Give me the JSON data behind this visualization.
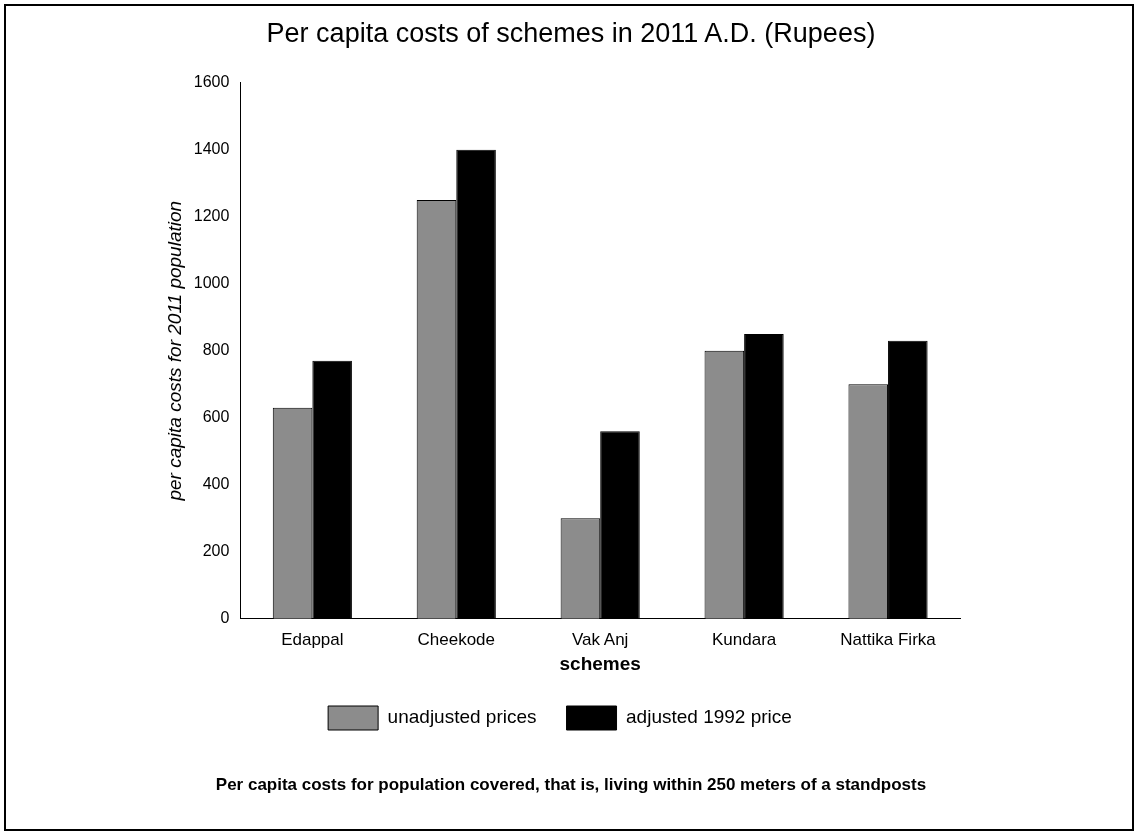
{
  "chart_data": {
    "type": "bar",
    "title": "Per capita costs  of schemes in 2011 A.D. (Rupees)",
    "xlabel": "schemes",
    "ylabel": "per capita costs for 2011 population",
    "categories": [
      "Edappal",
      "Cheekode",
      "Vak Anj",
      "Kundara",
      "Nattika Firka"
    ],
    "series": [
      {
        "name": "unadjusted prices",
        "color": "#8c8c8c",
        "values": [
          630,
          1250,
          300,
          800,
          700
        ]
      },
      {
        "name": "adjusted 1992 price",
        "color": "#000000",
        "values": [
          770,
          1400,
          560,
          850,
          830
        ]
      }
    ],
    "ylim": [
      0,
      1600
    ],
    "yticks": [
      0,
      200,
      400,
      600,
      800,
      1000,
      1200,
      1400,
      1600
    ],
    "grid": false,
    "legend": "bottom",
    "annotations": [
      "Per capita costs for population  covered, that is, living within 250 meters of a standposts"
    ]
  }
}
